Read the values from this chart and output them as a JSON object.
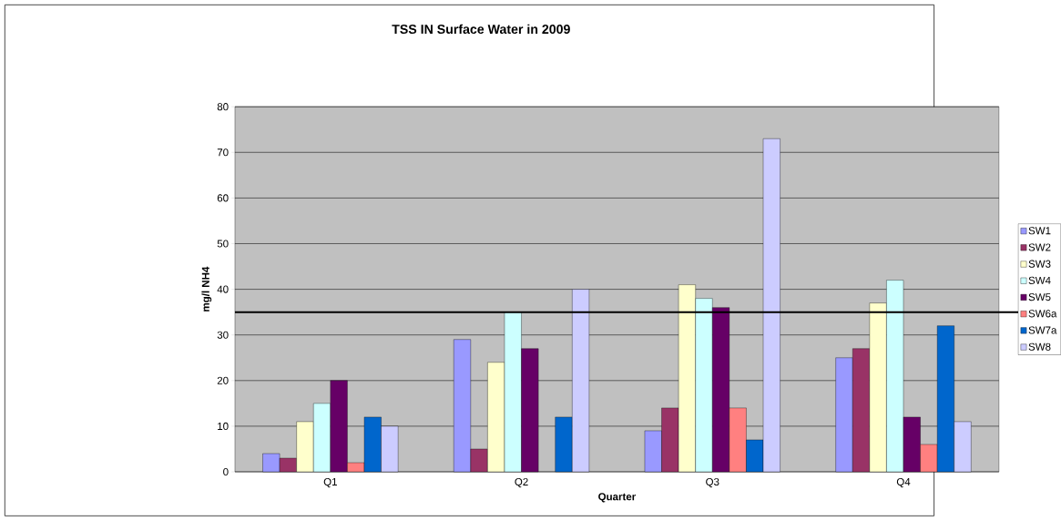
{
  "chart_data": {
    "type": "bar",
    "title": "TSS IN Surface Water in 2009",
    "xlabel": "Quarter",
    "ylabel": "mg/l NH4",
    "categories": [
      "Q1",
      "Q2",
      "Q3",
      "Q4"
    ],
    "series": [
      {
        "name": "SW1",
        "color": "#9999ff",
        "values": [
          4,
          29,
          9,
          25
        ]
      },
      {
        "name": "SW2",
        "color": "#993366",
        "values": [
          3,
          5,
          14,
          27
        ]
      },
      {
        "name": "SW3",
        "color": "#ffffcc",
        "values": [
          11,
          24,
          41,
          37
        ]
      },
      {
        "name": "SW4",
        "color": "#ccffff",
        "values": [
          15,
          35,
          38,
          42
        ]
      },
      {
        "name": "SW5",
        "color": "#660066",
        "values": [
          20,
          27,
          36,
          12
        ]
      },
      {
        "name": "SW6a",
        "color": "#ff8080",
        "values": [
          2,
          null,
          14,
          6
        ]
      },
      {
        "name": "SW7a",
        "color": "#0066cc",
        "values": [
          12,
          12,
          7,
          32
        ]
      },
      {
        "name": "SW8",
        "color": "#ccccff",
        "values": [
          10,
          40,
          73,
          11
        ]
      }
    ],
    "ylim": [
      0,
      80
    ],
    "yticks": [
      0,
      10,
      20,
      30,
      40,
      50,
      60,
      70,
      80
    ],
    "grid": "y",
    "legend": "right",
    "ref_lines": [
      {
        "axis": "y",
        "value": 35,
        "color": "#000000"
      }
    ]
  }
}
